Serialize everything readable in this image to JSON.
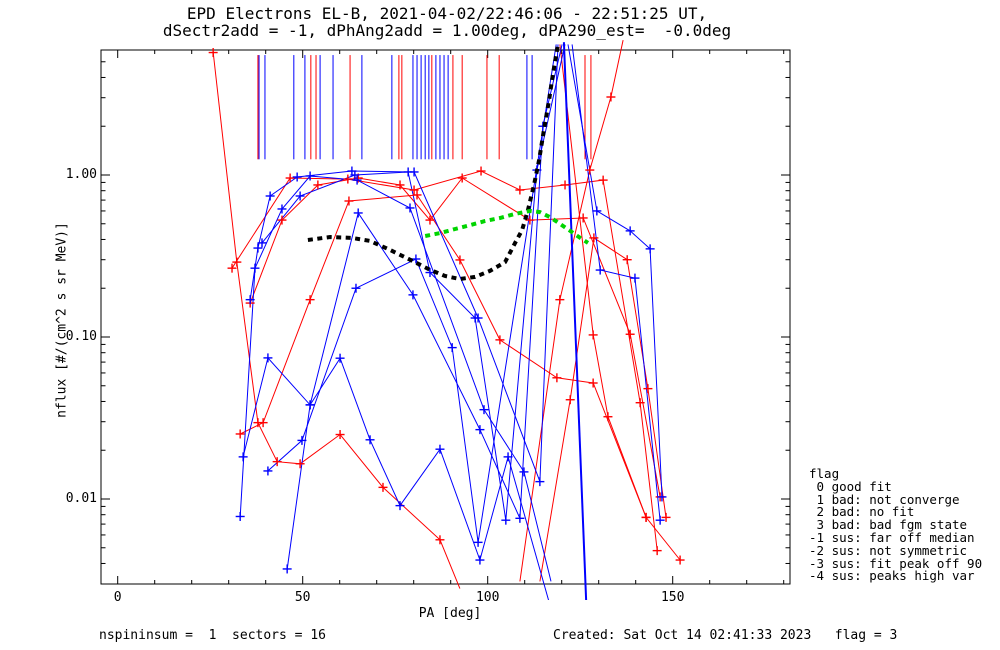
{
  "title": {
    "line1": "EPD Electrons EL-B, 2021-04-02/22:46:06 - 22:51:25 UT,",
    "line2": "dSectr2add = -1, dPhAng2add = 1.00deg, dPA290_est=  -0.0deg"
  },
  "axes": {
    "x_label": "PA [deg]",
    "y_label": "nflux [#/(cm^2 s sr MeV)]",
    "x_ticks": {
      "values": [
        0,
        50,
        100,
        150
      ],
      "labels": [
        "0",
        "50",
        "100",
        "150"
      ],
      "minor_step": 10,
      "minor_max": 180
    },
    "y_ticks": {
      "values": [
        1.0,
        0.1,
        0.01
      ],
      "labels": [
        "1.00",
        "0.10",
        "0.01"
      ]
    },
    "xlim_deg": [
      -4.5,
      182
    ],
    "ylim_flux": [
      0.0032,
      5.85
    ]
  },
  "legend": {
    "lines": [
      "flag",
      " 0 good fit",
      " 1 bad: not converge",
      " 2 bad: no fit",
      " 3 bad: bad fgm state",
      "-1 sus: far off median",
      "-2 sus: not symmetric",
      "-3 sus: fit peak off 90",
      "-4 sus: peaks high var"
    ]
  },
  "footer": {
    "left": "nspininsum =  1  sectors = 16",
    "right": "Created: Sat Oct 14 02:41:33 2023   flag = 3"
  },
  "colors": {
    "red": "#ff0000",
    "blue": "#0000ff",
    "fit_black": "#000000",
    "fit_green": "#00d400",
    "frame": "#000000"
  },
  "chart_data": {
    "type": "line",
    "title": "EPD Electrons EL-B pitch-angle distribution",
    "xlabel": "PA [deg]",
    "ylabel": "nflux [#/(cm^2 s sr MeV)]",
    "y_scale": "log",
    "grid": false,
    "legend_position": "right-outside",
    "flag_lines": {
      "flux_top": 5.5,
      "flux_bottom": 1.25,
      "red_pa": [
        37.9,
        52.2,
        53.6,
        62.8,
        76.0,
        76.8,
        84.9,
        90.6,
        93.1,
        99.8,
        103.1,
        126.3,
        127.9
      ],
      "blue_pa": [
        38.2,
        39.8,
        47.6,
        50.6,
        54.7,
        58.2,
        66.0,
        74.1,
        79.8,
        80.9,
        82.0,
        83.1,
        84.1,
        86.0,
        87.1,
        88.2,
        89.3,
        110.6,
        112.0
      ]
    },
    "series": [
      {
        "name": "spin-red-1",
        "color": "red",
        "width": 1,
        "points": [
          [
            25.8,
            5.7
          ],
          [
            32.2,
            0.29
          ],
          [
            37.9,
            0.0296
          ],
          [
            43.1,
            0.017
          ],
          [
            49.3,
            0.0165
          ],
          [
            60.1,
            0.025
          ],
          [
            71.7,
            0.0118
          ],
          [
            87.1,
            0.0056
          ],
          [
            92.5,
            0.0028
          ]
        ]
      },
      {
        "name": "spin-red-2",
        "color": "red",
        "width": 1,
        "points": [
          [
            30.9,
            0.266
          ],
          [
            46.6,
            0.958
          ],
          [
            62.2,
            0.944
          ],
          [
            80.1,
            0.808
          ],
          [
            98.2,
            1.058
          ],
          [
            108.7,
            0.808
          ],
          [
            120.9,
            0.868
          ],
          [
            131.2,
            0.93
          ],
          [
            141.2,
            0.0393
          ],
          [
            145.8,
            0.0048
          ]
        ]
      },
      {
        "name": "spin-red-3",
        "color": "red",
        "width": 1,
        "points": [
          [
            33.1,
            0.0252
          ],
          [
            39.3,
            0.0296
          ],
          [
            52.0,
            0.17
          ],
          [
            62.5,
            0.691
          ],
          [
            80.9,
            0.753
          ],
          [
            92.5,
            0.299
          ],
          [
            103.3,
            0.096
          ],
          [
            118.7,
            0.056
          ],
          [
            128.5,
            0.052
          ],
          [
            142.8,
            0.0077
          ]
        ]
      },
      {
        "name": "spin-red-4",
        "color": "red",
        "width": 1,
        "points": [
          [
            108.7,
            0.0031
          ],
          [
            119.5,
            0.17
          ],
          [
            127.6,
            1.073
          ],
          [
            133.3,
            3.03
          ],
          [
            136.6,
            6.8
          ]
        ]
      },
      {
        "name": "spin-red-5",
        "color": "red",
        "width": 1,
        "points": [
          [
            114.1,
            0.0031
          ],
          [
            122.3,
            0.041
          ],
          [
            128.7,
            0.409
          ],
          [
            137.7,
            0.3
          ],
          [
            143.3,
            0.048
          ],
          [
            148.2,
            0.0077
          ]
        ]
      },
      {
        "name": "spin-red-6",
        "color": "red",
        "width": 1,
        "points": [
          [
            119.5,
            6.4
          ],
          [
            128.5,
            0.103
          ],
          [
            132.5,
            0.0322
          ],
          [
            142.8,
            0.0077
          ],
          [
            152.0,
            0.0042
          ]
        ]
      },
      {
        "name": "spin-red-7",
        "color": "red",
        "width": 1,
        "points": [
          [
            35.8,
            0.162
          ],
          [
            44.4,
            0.527
          ],
          [
            54.1,
            0.868
          ],
          [
            65.0,
            0.958
          ],
          [
            76.3,
            0.868
          ],
          [
            84.4,
            0.527
          ],
          [
            93.1,
            0.958
          ],
          [
            111.4,
            0.527
          ],
          [
            125.8,
            0.543
          ],
          [
            138.5,
            0.104
          ],
          [
            146.6,
            0.0103
          ]
        ]
      },
      {
        "name": "spin-blue-1",
        "color": "blue",
        "width": 1,
        "points": [
          [
            35.8,
            0.17
          ],
          [
            37.9,
            0.354
          ],
          [
            41.2,
            0.742
          ],
          [
            48.5,
            0.972
          ],
          [
            63.3,
            1.058
          ],
          [
            80.1,
            1.044
          ],
          [
            97.4,
            0.131
          ],
          [
            114.1,
            0.0128
          ],
          [
            119.0,
            6.4
          ]
        ]
      },
      {
        "name": "spin-blue-2",
        "color": "blue",
        "width": 1,
        "points": [
          [
            33.1,
            0.0078
          ],
          [
            37.1,
            0.266
          ],
          [
            44.4,
            0.617
          ],
          [
            52.0,
            0.986
          ],
          [
            64.7,
            0.93
          ],
          [
            79.0,
            0.626
          ],
          [
            99.0,
            0.0356
          ],
          [
            109.8,
            0.0147
          ],
          [
            117.1,
            0.0031
          ]
        ]
      },
      {
        "name": "spin-blue-3",
        "color": "blue",
        "width": 1,
        "points": [
          [
            40.6,
            0.0149
          ],
          [
            49.8,
            0.023
          ],
          [
            64.4,
            0.2
          ],
          [
            80.6,
            0.303
          ],
          [
            90.4,
            0.086
          ],
          [
            97.4,
            0.0054
          ],
          [
            118.5,
            6.4
          ]
        ]
      },
      {
        "name": "spin-blue-4",
        "color": "blue",
        "width": 1,
        "points": [
          [
            33.9,
            0.0182
          ],
          [
            40.6,
            0.0743
          ],
          [
            52.0,
            0.0381
          ],
          [
            65.0,
            0.583
          ],
          [
            79.8,
            0.182
          ],
          [
            97.9,
            0.0268
          ],
          [
            108.7,
            0.0076
          ],
          [
            114.9,
            2.0
          ],
          [
            120.1,
            6.4
          ]
        ]
      },
      {
        "name": "spin-blue-5",
        "color": "blue",
        "width": 1,
        "points": [
          [
            39.0,
            0.381
          ],
          [
            49.3,
            0.742
          ],
          [
            64.1,
            1.0
          ],
          [
            78.5,
            1.044
          ],
          [
            84.4,
            0.25
          ],
          [
            96.6,
            0.131
          ],
          [
            104.9,
            0.0074
          ],
          [
            113.3,
            1.073
          ],
          [
            120.9,
            6.4
          ]
        ]
      },
      {
        "name": "spin-blue-6",
        "color": "blue",
        "width": 1,
        "points": [
          [
            121.7,
            6.4
          ],
          [
            129.5,
            0.6
          ],
          [
            138.5,
            0.452
          ],
          [
            143.9,
            0.35
          ],
          [
            147.1,
            0.0103
          ]
        ]
      },
      {
        "name": "spin-blue-7",
        "color": "blue",
        "width": 1,
        "points": [
          [
            122.8,
            6.4
          ],
          [
            130.4,
            0.259
          ],
          [
            139.8,
            0.231
          ],
          [
            146.6,
            0.0074
          ]
        ]
      },
      {
        "name": "spin-blue-8",
        "color": "blue",
        "width": 1,
        "points": [
          [
            45.8,
            0.0037
          ],
          [
            52.0,
            0.0381
          ],
          [
            60.1,
            0.074
          ],
          [
            68.2,
            0.0232
          ],
          [
            76.3,
            0.0091
          ],
          [
            87.1,
            0.0203
          ],
          [
            97.9,
            0.0042
          ],
          [
            105.5,
            0.0182
          ],
          [
            117.1,
            0.0021
          ]
        ]
      },
      {
        "name": "spin-blue-9",
        "color": "blue",
        "width": 2,
        "no_markers": true,
        "points": [
          [
            120.6,
            6.6
          ],
          [
            126.8,
            0.0018
          ]
        ]
      }
    ],
    "fits": [
      {
        "name": "fit-curve-black",
        "color": "fit_black",
        "style": "dashed",
        "width": 4,
        "points": [
          [
            51.4,
            0.397
          ],
          [
            57.4,
            0.414
          ],
          [
            63.3,
            0.409
          ],
          [
            68.2,
            0.392
          ],
          [
            73.6,
            0.345
          ],
          [
            79.0,
            0.3
          ],
          [
            84.4,
            0.26
          ],
          [
            88.5,
            0.238
          ],
          [
            92.5,
            0.228
          ],
          [
            96.6,
            0.235
          ],
          [
            100.6,
            0.256
          ],
          [
            104.7,
            0.29
          ],
          [
            107.4,
            0.381
          ],
          [
            109.3,
            0.457
          ],
          [
            110.9,
            0.61
          ],
          [
            112.5,
            0.868
          ],
          [
            113.9,
            1.238
          ],
          [
            115.2,
            1.896
          ],
          [
            116.6,
            2.905
          ],
          [
            117.6,
            4.146
          ],
          [
            118.5,
            5.5
          ],
          [
            119.0,
            6.4
          ]
        ]
      },
      {
        "name": "fit-curve-green",
        "color": "fit_green",
        "style": "dashed",
        "width": 4,
        "points": [
          [
            83.1,
            0.42
          ],
          [
            87.1,
            0.438
          ],
          [
            91.2,
            0.464
          ],
          [
            95.2,
            0.49
          ],
          [
            99.3,
            0.52
          ],
          [
            103.3,
            0.543
          ],
          [
            107.4,
            0.575
          ],
          [
            111.4,
            0.6
          ],
          [
            114.1,
            0.59
          ],
          [
            116.8,
            0.55
          ],
          [
            119.5,
            0.5
          ],
          [
            122.3,
            0.452
          ],
          [
            125.0,
            0.409
          ],
          [
            127.1,
            0.381
          ]
        ]
      }
    ]
  }
}
